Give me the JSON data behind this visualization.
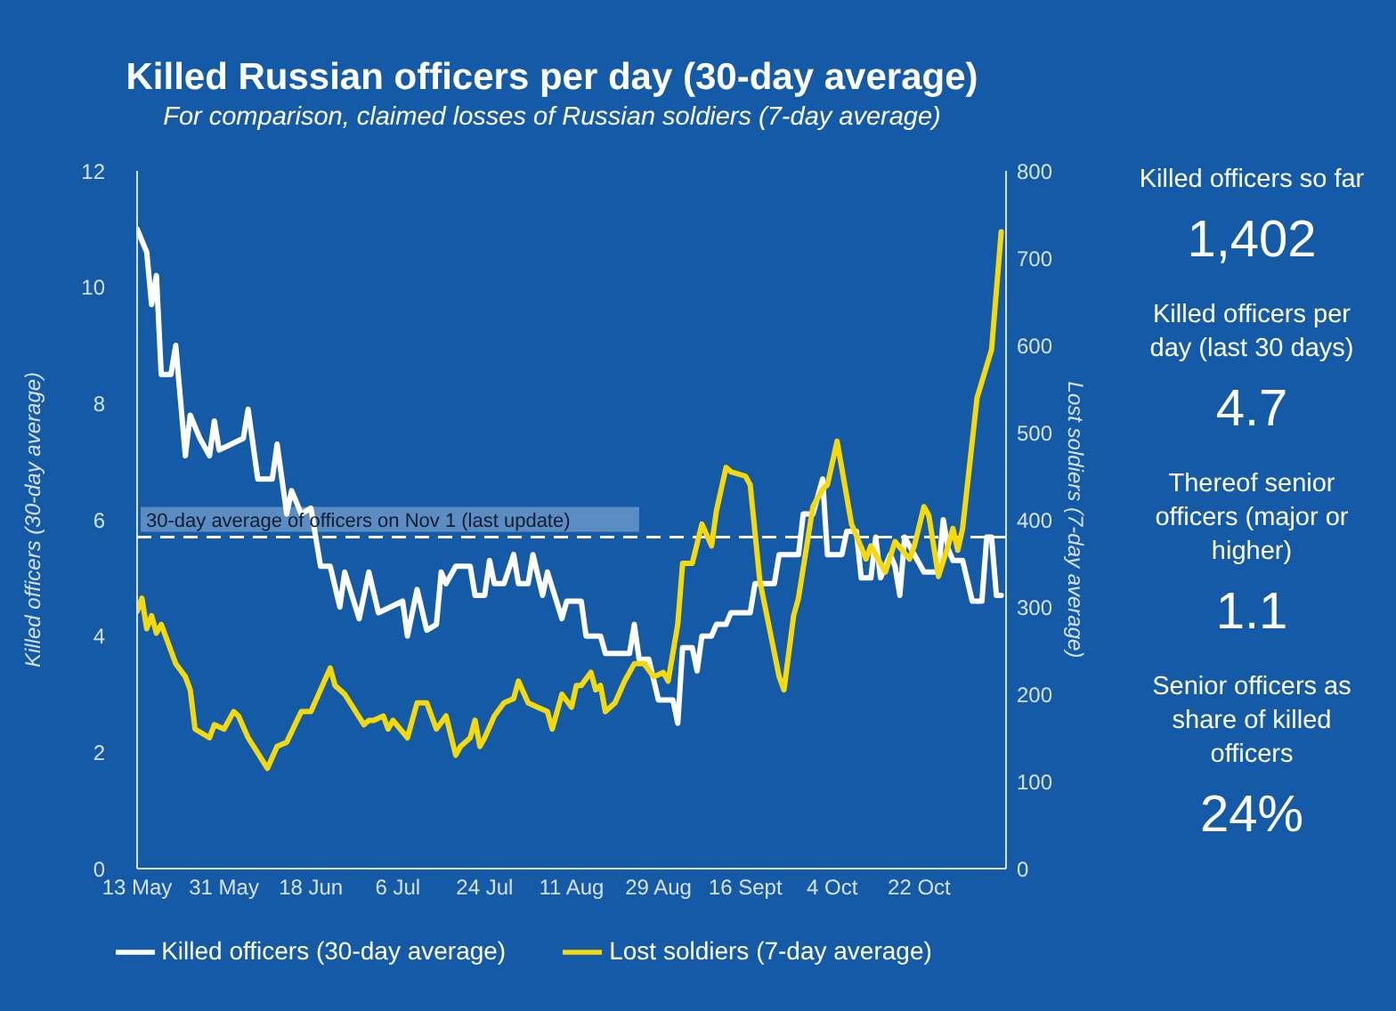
{
  "chart_data": [
    {
      "type": "line",
      "title": "Killed Russian officers per day (30-day average)",
      "subtitle": "For comparison, claimed losses of Russian soldiers (7-day average)",
      "ylabel": "Killed officers (30-day average)",
      "y2label": "Lost soldiers (7-day average)",
      "xlim": [
        "--05-13",
        "--11-09"
      ],
      "xticks": [
        {
          "value": "--05-13",
          "label": "13 May"
        },
        {
          "value": "--05-31",
          "label": "31 May"
        },
        {
          "value": "--06-18",
          "label": "18 Jun"
        },
        {
          "value": "--07-06",
          "label": "6 Jul"
        },
        {
          "value": "--07-24",
          "label": "24 Jul"
        },
        {
          "value": "--08-11",
          "label": "11 Aug"
        },
        {
          "value": "--08-29",
          "label": "29 Aug"
        },
        {
          "value": "--09-16",
          "label": "16 Sept"
        },
        {
          "value": "--10-04",
          "label": "4 Oct"
        },
        {
          "value": "--10-22",
          "label": "22 Oct"
        }
      ],
      "ylim": [
        0,
        12
      ],
      "yticks": [
        0,
        2,
        4,
        6,
        8,
        10,
        12
      ],
      "y2lim": [
        0,
        800
      ],
      "y2ticks": [
        0,
        100,
        200,
        300,
        400,
        500,
        600,
        700,
        800
      ],
      "legend": "bottom",
      "line_style": "solid",
      "ref_lines": [
        {
          "axis": "y",
          "value": 5.7,
          "label": "30-day average of officers on Nov 1 (last update)",
          "color": "#ffffff",
          "line_style": "dashed"
        }
      ],
      "series": [
        {
          "name": "Killed officers (30-day average)",
          "color": "#ffffff",
          "x": [
            "--05-13",
            "--05-15",
            "--05-16",
            "--05-17",
            "--05-18",
            "--05-20",
            "--05-21",
            "--05-23",
            "--05-24",
            "--05-26",
            "--05-28",
            "--05-29",
            "--05-30",
            "--06-04",
            "--06-05",
            "--06-07",
            "--06-10",
            "--06-11",
            "--06-13",
            "--06-14",
            "--06-16",
            "--06-18",
            "--06-20",
            "--06-22",
            "--06-24",
            "--06-25",
            "--06-28",
            "--06-30",
            "--07-02",
            "--07-07",
            "--07-08",
            "--07-10",
            "--07-12",
            "--07-14",
            "--07-15",
            "--07-16",
            "--07-18",
            "--07-21",
            "--07-22",
            "--07-24",
            "--07-25",
            "--07-26",
            "--07-28",
            "--07-30",
            "--07-31",
            "--08-02",
            "--08-03",
            "--08-05",
            "--08-06",
            "--08-09",
            "--08-10",
            "--08-13",
            "--08-14",
            "--08-17",
            "--08-18",
            "--08-23",
            "--08-24",
            "--08-25",
            "--08-27",
            "--08-29",
            "--09-01",
            "--09-02",
            "--09-03",
            "--09-05",
            "--09-06",
            "--09-07",
            "--09-09",
            "--09-10",
            "--09-12",
            "--09-13",
            "--09-17",
            "--09-18",
            "--09-22",
            "--09-23",
            "--09-27",
            "--09-28",
            "--09-30",
            "--10-01",
            "--10-02",
            "--10-03",
            "--10-06",
            "--10-07",
            "--10-09",
            "--10-10",
            "--10-12",
            "--10-13",
            "--10-14",
            "--10-16",
            "--10-17",
            "--10-18",
            "--10-19",
            "--10-21",
            "--10-23",
            "--10-26",
            "--10-27",
            "--10-28",
            "--10-29",
            "--10-31",
            "--11-02",
            "--11-04",
            "--11-05",
            "--11-06",
            "--11-07",
            "--11-08"
          ],
          "values": [
            11.0,
            10.6,
            9.7,
            10.2,
            8.5,
            8.5,
            9.0,
            7.1,
            7.8,
            7.4,
            7.1,
            7.7,
            7.2,
            7.4,
            7.9,
            6.7,
            6.7,
            7.3,
            6.1,
            6.5,
            6.1,
            6.2,
            5.2,
            5.2,
            4.5,
            5.1,
            4.3,
            5.1,
            4.4,
            4.6,
            4.0,
            4.8,
            4.1,
            4.2,
            5.1,
            4.9,
            5.2,
            5.2,
            4.7,
            4.7,
            5.3,
            4.9,
            4.9,
            5.4,
            4.9,
            4.9,
            5.4,
            4.7,
            5.1,
            4.3,
            4.6,
            4.6,
            4.0,
            4.0,
            3.7,
            3.7,
            4.2,
            3.6,
            3.6,
            2.9,
            2.9,
            2.5,
            3.8,
            3.8,
            3.4,
            4.0,
            4.0,
            4.2,
            4.2,
            4.4,
            4.4,
            4.9,
            4.9,
            5.4,
            5.4,
            6.1,
            6.1,
            6.4,
            6.7,
            5.4,
            5.4,
            5.8,
            5.8,
            5.0,
            5.0,
            5.7,
            5.0,
            5.4,
            5.2,
            4.7,
            5.7,
            5.4,
            5.1,
            5.1,
            6.0,
            5.5,
            5.3,
            5.3,
            4.6,
            4.6,
            5.7,
            5.7,
            4.7,
            4.7
          ]
        },
        {
          "name": "Lost soldiers (7-day average)",
          "color": "#f5d90a",
          "axis": "y2",
          "x": [
            "--05-13",
            "--05-14",
            "--05-15",
            "--05-16",
            "--05-17",
            "--05-18",
            "--05-19",
            "--05-21",
            "--05-23",
            "--05-24",
            "--05-25",
            "--05-28",
            "--05-29",
            "--05-31",
            "--06-02",
            "--06-03",
            "--06-05",
            "--06-09",
            "--06-11",
            "--06-13",
            "--06-16",
            "--06-18",
            "--06-20",
            "--06-22",
            "--06-23",
            "--06-25",
            "--06-29",
            "--06-30",
            "--07-01",
            "--07-03",
            "--07-04",
            "--07-05",
            "--07-08",
            "--07-10",
            "--07-12",
            "--07-14",
            "--07-16",
            "--07-18",
            "--07-19",
            "--07-21",
            "--07-22",
            "--07-23",
            "--07-24",
            "--07-26",
            "--07-28",
            "--07-30",
            "--07-31",
            "--08-02",
            "--08-04",
            "--08-06",
            "--08-07",
            "--08-09",
            "--08-11",
            "--08-12",
            "--08-13",
            "--08-15",
            "--08-16",
            "--08-17",
            "--08-18",
            "--08-20",
            "--08-22",
            "--08-24",
            "--08-26",
            "--08-28",
            "--08-30",
            "--08-31",
            "--09-02",
            "--09-03",
            "--09-05",
            "--09-07",
            "--09-09",
            "--09-10",
            "--09-12",
            "--09-13",
            "--09-16",
            "--09-17",
            "--09-19",
            "--09-21",
            "--09-23",
            "--09-24",
            "--09-26",
            "--09-27",
            "--09-30",
            "--10-02",
            "--10-03",
            "--10-05",
            "--10-08",
            "--10-11",
            "--10-12",
            "--10-15",
            "--10-17",
            "--10-20",
            "--10-21",
            "--10-23",
            "--10-24",
            "--10-26",
            "--10-28",
            "--10-29",
            "--10-30",
            "--10-31",
            "--11-01",
            "--11-03",
            "--11-06",
            "--11-08"
          ],
          "values": [
            295,
            310,
            275,
            290,
            270,
            280,
            265,
            235,
            220,
            205,
            160,
            150,
            165,
            160,
            180,
            175,
            150,
            115,
            140,
            145,
            180,
            180,
            205,
            230,
            210,
            200,
            165,
            170,
            170,
            175,
            160,
            170,
            150,
            190,
            190,
            160,
            175,
            130,
            140,
            150,
            170,
            140,
            150,
            175,
            190,
            195,
            215,
            190,
            185,
            180,
            160,
            200,
            185,
            210,
            210,
            225,
            205,
            210,
            180,
            190,
            215,
            235,
            235,
            220,
            225,
            215,
            280,
            350,
            350,
            395,
            370,
            410,
            460,
            455,
            450,
            440,
            330,
            275,
            220,
            205,
            290,
            310,
            415,
            435,
            440,
            490,
            395,
            355,
            370,
            340,
            375,
            355,
            370,
            415,
            405,
            335,
            370,
            390,
            365,
            390,
            440,
            540,
            595,
            730
          ]
        }
      ]
    },
    {
      "type": "other",
      "annotations": [
        "Killed officers so far",
        "1,402",
        "Killed officers per day (last 30 days)",
        "4.7",
        "Thereof senior officers (major or higher)",
        "1.1",
        "Senior officers as share of killed officers",
        "24%"
      ]
    }
  ]
}
